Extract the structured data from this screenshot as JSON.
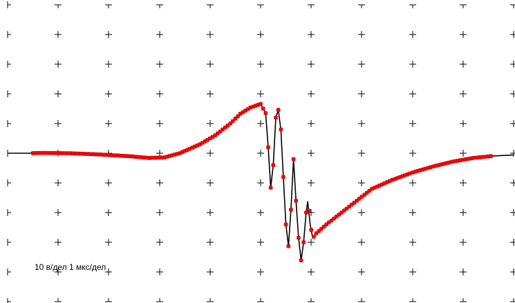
{
  "scale_label": "10 в/дел 1 мкс/дел",
  "colors": {
    "background": "#ffffff",
    "grid": "#000000",
    "trace": "#000000",
    "samples": "#ff0000"
  },
  "chart_data": {
    "type": "line",
    "grid": true,
    "x_divisions": 10,
    "y_divisions": 10,
    "xlim": [
      0,
      10
    ],
    "ylim": [
      -50,
      50
    ],
    "x_unit_per_division": "1 мкс",
    "y_unit_per_division": "10 в",
    "series": [
      {
        "role": "trace",
        "color": "#000000",
        "points": [
          [
            0.0,
            0.0
          ],
          [
            0.4,
            0.0
          ],
          [
            0.7,
            0.1
          ],
          [
            1.2,
            0.0
          ],
          [
            1.8,
            -0.4
          ],
          [
            2.4,
            -1.0
          ],
          [
            2.8,
            -1.6
          ],
          [
            3.1,
            -1.4
          ],
          [
            3.4,
            0.0
          ],
          [
            3.8,
            3.0
          ],
          [
            4.1,
            6.0
          ],
          [
            4.4,
            10.0
          ],
          [
            4.6,
            13.3
          ],
          [
            4.8,
            15.4
          ],
          [
            5.0,
            16.6
          ],
          [
            5.1,
            13.5
          ],
          [
            5.15,
            2.0
          ],
          [
            5.2,
            -11.6
          ],
          [
            5.25,
            -4.0
          ],
          [
            5.3,
            12.0
          ],
          [
            5.35,
            14.6
          ],
          [
            5.4,
            8.0
          ],
          [
            5.45,
            -8.0
          ],
          [
            5.5,
            -24.0
          ],
          [
            5.55,
            -31.3
          ],
          [
            5.6,
            -19.0
          ],
          [
            5.65,
            -2.0
          ],
          [
            5.7,
            -16.0
          ],
          [
            5.75,
            -28.5
          ],
          [
            5.8,
            -36.1
          ],
          [
            5.85,
            -30.0
          ],
          [
            5.9,
            -20.0
          ],
          [
            5.93,
            -16.3
          ],
          [
            5.98,
            -24.0
          ],
          [
            6.03,
            -28.6
          ],
          [
            6.1,
            -27.0
          ],
          [
            6.3,
            -24.0
          ],
          [
            6.6,
            -20.0
          ],
          [
            6.9,
            -16.0
          ],
          [
            7.2,
            -12.0
          ],
          [
            7.6,
            -9.0
          ],
          [
            8.0,
            -6.5
          ],
          [
            8.4,
            -4.5
          ],
          [
            8.8,
            -2.8
          ],
          [
            9.2,
            -1.6
          ],
          [
            9.6,
            -0.9
          ],
          [
            10.0,
            -0.6
          ]
        ]
      },
      {
        "role": "samples",
        "color": "#ff0000",
        "start_x": 0.5,
        "end_x": 9.55,
        "step_x": 0.05
      }
    ]
  }
}
